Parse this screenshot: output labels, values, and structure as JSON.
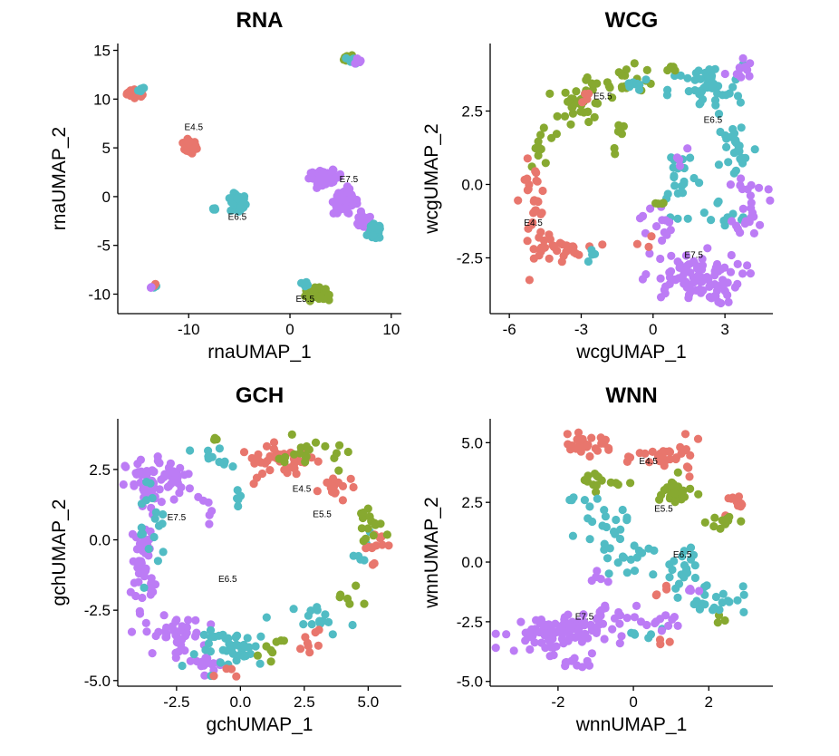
{
  "colors": {
    "E4.5": "#E8766D",
    "E5.5": "#87A930",
    "E6.5": "#51BCC4",
    "E7.5": "#BC7CF5"
  },
  "chart_data": [
    {
      "type": "scatter",
      "title": "RNA",
      "xlabel": "rnaUMAP_1",
      "ylabel": "rnaUMAP_2",
      "xlim": [
        -17,
        11
      ],
      "ylim": [
        -12,
        15.7
      ],
      "xticks": [
        -10,
        0,
        10
      ],
      "yticks": [
        -10,
        -5,
        0,
        5,
        10,
        15
      ],
      "labels": [
        {
          "text": "E4.5",
          "x": -9.5,
          "y": 6.8
        },
        {
          "text": "E5.5",
          "x": 1.5,
          "y": -10.8
        },
        {
          "text": "E6.5",
          "x": -5.2,
          "y": -2.4
        },
        {
          "text": "E7.5",
          "x": 5.8,
          "y": 1.5
        }
      ],
      "clusters": [
        {
          "group": "E4.5",
          "x": -15.2,
          "y": 10.6,
          "rx": 0.8,
          "ry": 0.35,
          "n": 40
        },
        {
          "group": "E6.5",
          "x": -14.7,
          "y": 10.9,
          "rx": 0.3,
          "ry": 0.3,
          "n": 5
        },
        {
          "group": "E4.5",
          "x": -9.9,
          "y": 5.1,
          "rx": 0.6,
          "ry": 0.6,
          "n": 45
        },
        {
          "group": "E6.5",
          "x": -5.1,
          "y": -0.7,
          "rx": 0.7,
          "ry": 0.9,
          "n": 50
        },
        {
          "group": "E6.5",
          "x": -7.4,
          "y": -1.2,
          "rx": 0.3,
          "ry": 0.2,
          "n": 4
        },
        {
          "group": "E6.5",
          "x": -13.4,
          "y": -9.2,
          "rx": 0.3,
          "ry": 0.2,
          "n": 3
        },
        {
          "group": "E4.5",
          "x": -13.3,
          "y": -9.0,
          "rx": 0.2,
          "ry": 0.2,
          "n": 2
        },
        {
          "group": "E7.5",
          "x": -13.7,
          "y": -9.3,
          "rx": 0.2,
          "ry": 0.2,
          "n": 3
        },
        {
          "group": "E5.5",
          "x": 5.8,
          "y": 14.2,
          "rx": 0.4,
          "ry": 0.35,
          "n": 20
        },
        {
          "group": "E6.5",
          "x": 6.3,
          "y": 14.0,
          "rx": 0.4,
          "ry": 0.3,
          "n": 10
        },
        {
          "group": "E7.5",
          "x": 6.6,
          "y": 14.0,
          "rx": 0.3,
          "ry": 0.3,
          "n": 5
        },
        {
          "group": "E5.5",
          "x": 2.5,
          "y": -10.0,
          "rx": 0.9,
          "ry": 0.55,
          "n": 55
        },
        {
          "group": "E6.5",
          "x": 1.6,
          "y": -8.9,
          "rx": 0.3,
          "ry": 0.25,
          "n": 4
        },
        {
          "group": "E7.5",
          "x": 3.5,
          "y": 2.0,
          "rx": 1.5,
          "ry": 0.6,
          "n": 60
        },
        {
          "group": "E7.5",
          "x": 5.5,
          "y": -0.5,
          "rx": 1.1,
          "ry": 1.2,
          "n": 55
        },
        {
          "group": "E7.5",
          "x": 7.2,
          "y": -2.6,
          "rx": 0.8,
          "ry": 0.6,
          "n": 30
        },
        {
          "group": "E6.5",
          "x": 8.4,
          "y": -3.6,
          "rx": 0.55,
          "ry": 0.7,
          "n": 45
        }
      ]
    },
    {
      "type": "scatter",
      "title": "WCG",
      "xlabel": "wcgUMAP_1",
      "ylabel": "wcgUMAP_2",
      "xlim": [
        -6.8,
        5.0
      ],
      "ylim": [
        -4.4,
        4.8
      ],
      "xticks": [
        -6,
        -3,
        0,
        3
      ],
      "yticks": [
        -2.5,
        0.0,
        2.5
      ],
      "labels": [
        {
          "text": "E4.5",
          "x": -5.0,
          "y": -1.4
        },
        {
          "text": "E5.5",
          "x": -2.1,
          "y": 2.9
        },
        {
          "text": "E6.5",
          "x": 2.5,
          "y": 2.1
        },
        {
          "text": "E7.5",
          "x": 1.7,
          "y": -2.5
        }
      ],
      "clusters": [
        {
          "group": "E5.5",
          "x": -2.9,
          "y": 2.7,
          "rx": 0.9,
          "ry": 0.7,
          "n": 35
        },
        {
          "group": "E5.5",
          "x": -1.2,
          "y": 3.6,
          "rx": 1.3,
          "ry": 0.4,
          "n": 20
        },
        {
          "group": "E5.5",
          "x": -4.6,
          "y": 1.4,
          "rx": 0.5,
          "ry": 0.7,
          "n": 10
        },
        {
          "group": "E5.5",
          "x": -1.3,
          "y": 1.6,
          "rx": 0.4,
          "ry": 0.5,
          "n": 6
        },
        {
          "group": "E4.5",
          "x": -5.0,
          "y": -0.6,
          "rx": 0.5,
          "ry": 1.2,
          "n": 30
        },
        {
          "group": "E4.5",
          "x": -4.2,
          "y": -2.2,
          "rx": 1.2,
          "ry": 0.35,
          "n": 30
        },
        {
          "group": "E4.5",
          "x": -2.8,
          "y": 3.0,
          "rx": 0.3,
          "ry": 0.3,
          "n": 4
        },
        {
          "group": "E6.5",
          "x": 2.2,
          "y": 3.2,
          "rx": 1.4,
          "ry": 0.8,
          "n": 45
        },
        {
          "group": "E6.5",
          "x": 3.5,
          "y": 1.2,
          "rx": 0.8,
          "ry": 1.0,
          "n": 25
        },
        {
          "group": "E6.5",
          "x": 1.1,
          "y": 0.4,
          "rx": 0.7,
          "ry": 1.0,
          "n": 20
        },
        {
          "group": "E6.5",
          "x": -0.7,
          "y": 3.4,
          "rx": 0.5,
          "ry": 0.4,
          "n": 8
        },
        {
          "group": "E6.5",
          "x": -2.5,
          "y": -2.4,
          "rx": 0.3,
          "ry": 0.25,
          "n": 4
        },
        {
          "group": "E6.5",
          "x": 2.8,
          "y": -1.2,
          "rx": 1.3,
          "ry": 0.6,
          "n": 12
        },
        {
          "group": "E7.5",
          "x": 3.6,
          "y": 3.9,
          "rx": 0.5,
          "ry": 0.4,
          "n": 12
        },
        {
          "group": "E7.5",
          "x": 4.1,
          "y": -0.6,
          "rx": 0.6,
          "ry": 1.0,
          "n": 25
        },
        {
          "group": "E7.5",
          "x": 1.6,
          "y": -3.2,
          "rx": 1.9,
          "ry": 0.8,
          "n": 90
        },
        {
          "group": "E7.5",
          "x": 0.1,
          "y": -1.3,
          "rx": 0.6,
          "ry": 0.7,
          "n": 14
        },
        {
          "group": "E7.5",
          "x": 1.2,
          "y": 1.0,
          "rx": 0.3,
          "ry": 0.3,
          "n": 4
        },
        {
          "group": "E5.5",
          "x": 0.7,
          "y": 3.9,
          "rx": 0.3,
          "ry": 0.2,
          "n": 4
        },
        {
          "group": "E5.5",
          "x": 0.2,
          "y": -0.6,
          "rx": 0.4,
          "ry": 0.3,
          "n": 4
        },
        {
          "group": "E4.5",
          "x": -0.3,
          "y": -2.1,
          "rx": 0.3,
          "ry": 0.3,
          "n": 3
        }
      ]
    },
    {
      "type": "scatter",
      "title": "GCH",
      "xlabel": "gchUMAP_1",
      "ylabel": "gchUMAP_2",
      "xlim": [
        -4.8,
        6.3
      ],
      "ylim": [
        -5.2,
        4.3
      ],
      "xticks": [
        -2.5,
        0.0,
        2.5,
        5.0
      ],
      "yticks": [
        -5.0,
        -2.5,
        0.0,
        2.5
      ],
      "labels": [
        {
          "text": "E4.5",
          "x": 2.4,
          "y": 1.7
        },
        {
          "text": "E5.5",
          "x": 3.2,
          "y": 0.8
        },
        {
          "text": "E6.5",
          "x": -0.5,
          "y": -1.5
        },
        {
          "text": "E7.5",
          "x": -2.5,
          "y": 0.7
        }
      ],
      "clusters": [
        {
          "group": "E7.5",
          "x": -3.6,
          "y": 1.9,
          "rx": 0.8,
          "ry": 0.9,
          "n": 50
        },
        {
          "group": "E7.5",
          "x": -2.4,
          "y": 2.2,
          "rx": 0.7,
          "ry": 0.6,
          "n": 20
        },
        {
          "group": "E7.5",
          "x": -3.8,
          "y": -0.8,
          "rx": 0.4,
          "ry": 1.5,
          "n": 40
        },
        {
          "group": "E7.5",
          "x": -2.6,
          "y": -3.4,
          "rx": 1.0,
          "ry": 0.6,
          "n": 40
        },
        {
          "group": "E7.5",
          "x": -1.2,
          "y": -4.3,
          "rx": 0.8,
          "ry": 0.3,
          "n": 15
        },
        {
          "group": "E7.5",
          "x": -1.3,
          "y": 0.9,
          "rx": 0.4,
          "ry": 0.5,
          "n": 6
        },
        {
          "group": "E6.5",
          "x": -3.6,
          "y": 0.6,
          "rx": 0.6,
          "ry": 1.6,
          "n": 18
        },
        {
          "group": "E6.5",
          "x": -0.1,
          "y": -3.9,
          "rx": 1.4,
          "ry": 0.6,
          "n": 40
        },
        {
          "group": "E6.5",
          "x": 3.3,
          "y": -2.8,
          "rx": 1.1,
          "ry": 0.5,
          "n": 15
        },
        {
          "group": "E6.5",
          "x": -1.3,
          "y": 2.9,
          "rx": 0.7,
          "ry": 0.5,
          "n": 10
        },
        {
          "group": "E6.5",
          "x": 4.9,
          "y": 0.0,
          "rx": 0.4,
          "ry": 0.6,
          "n": 6
        },
        {
          "group": "E6.5",
          "x": 0.0,
          "y": 1.4,
          "rx": 0.5,
          "ry": 0.3,
          "n": 5
        },
        {
          "group": "E4.5",
          "x": 1.5,
          "y": 2.8,
          "rx": 1.4,
          "ry": 0.5,
          "n": 40
        },
        {
          "group": "E4.5",
          "x": 3.8,
          "y": 1.8,
          "rx": 0.6,
          "ry": 0.5,
          "n": 15
        },
        {
          "group": "E4.5",
          "x": 5.2,
          "y": -0.1,
          "rx": 0.4,
          "ry": 0.6,
          "n": 12
        },
        {
          "group": "E4.5",
          "x": 2.7,
          "y": -3.6,
          "rx": 0.6,
          "ry": 0.5,
          "n": 8
        },
        {
          "group": "E4.5",
          "x": -0.6,
          "y": -4.7,
          "rx": 0.4,
          "ry": 0.2,
          "n": 4
        },
        {
          "group": "E5.5",
          "x": 2.8,
          "y": 3.0,
          "rx": 1.3,
          "ry": 0.6,
          "n": 20
        },
        {
          "group": "E5.5",
          "x": 5.0,
          "y": 0.5,
          "rx": 0.5,
          "ry": 0.8,
          "n": 15
        },
        {
          "group": "E5.5",
          "x": 4.2,
          "y": -2.2,
          "rx": 0.5,
          "ry": 0.4,
          "n": 6
        },
        {
          "group": "E5.5",
          "x": 1.2,
          "y": -3.8,
          "rx": 0.8,
          "ry": 0.4,
          "n": 8
        },
        {
          "group": "E5.5",
          "x": -0.9,
          "y": 3.5,
          "rx": 0.3,
          "ry": 0.2,
          "n": 3
        }
      ]
    },
    {
      "type": "scatter",
      "title": "WNN",
      "xlabel": "wnnUMAP_1",
      "ylabel": "wnnUMAP_2",
      "xlim": [
        -3.8,
        3.7
      ],
      "ylim": [
        -5.2,
        6.0
      ],
      "xticks": [
        -2,
        0,
        2
      ],
      "yticks": [
        -5.0,
        -2.5,
        0.0,
        2.5,
        5.0
      ],
      "labels": [
        {
          "text": "E4.5",
          "x": 0.4,
          "y": 4.1
        },
        {
          "text": "E5.5",
          "x": 0.8,
          "y": 2.1
        },
        {
          "text": "E6.5",
          "x": 1.3,
          "y": 0.2
        },
        {
          "text": "E7.5",
          "x": -1.3,
          "y": -2.4
        }
      ],
      "clusters": [
        {
          "group": "E4.5",
          "x": -1.3,
          "y": 4.9,
          "rx": 0.7,
          "ry": 0.35,
          "n": 30
        },
        {
          "group": "E4.5",
          "x": 1.0,
          "y": 4.4,
          "rx": 0.8,
          "ry": 0.6,
          "n": 30
        },
        {
          "group": "E4.5",
          "x": 2.7,
          "y": 2.4,
          "rx": 0.4,
          "ry": 0.6,
          "n": 10
        },
        {
          "group": "E4.5",
          "x": 0.6,
          "y": -1.3,
          "rx": 0.3,
          "ry": 0.3,
          "n": 4
        },
        {
          "group": "E4.5",
          "x": 0.8,
          "y": -3.4,
          "rx": 0.3,
          "ry": 0.2,
          "n": 3
        },
        {
          "group": "E5.5",
          "x": -0.9,
          "y": 3.4,
          "rx": 0.5,
          "ry": 0.4,
          "n": 15
        },
        {
          "group": "E5.5",
          "x": 1.1,
          "y": 2.9,
          "rx": 0.5,
          "ry": 0.6,
          "n": 25
        },
        {
          "group": "E5.5",
          "x": 2.4,
          "y": 1.7,
          "rx": 0.4,
          "ry": 0.4,
          "n": 10
        },
        {
          "group": "E5.5",
          "x": 2.4,
          "y": -2.4,
          "rx": 0.3,
          "ry": 0.2,
          "n": 3
        },
        {
          "group": "E6.5",
          "x": -0.8,
          "y": 1.5,
          "rx": 0.6,
          "ry": 0.8,
          "n": 20
        },
        {
          "group": "E6.5",
          "x": -0.3,
          "y": 0.2,
          "rx": 0.7,
          "ry": 0.6,
          "n": 15
        },
        {
          "group": "E6.5",
          "x": 1.4,
          "y": 0.0,
          "rx": 0.6,
          "ry": 0.8,
          "n": 20
        },
        {
          "group": "E6.5",
          "x": 2.0,
          "y": -1.5,
          "rx": 0.9,
          "ry": 0.6,
          "n": 25
        },
        {
          "group": "E6.5",
          "x": 0.3,
          "y": -3.0,
          "rx": 0.4,
          "ry": 0.3,
          "n": 6
        },
        {
          "group": "E6.5",
          "x": -1.6,
          "y": 2.7,
          "rx": 0.2,
          "ry": 0.2,
          "n": 3
        },
        {
          "group": "E7.5",
          "x": -2.2,
          "y": -3.0,
          "rx": 1.2,
          "ry": 0.7,
          "n": 80
        },
        {
          "group": "E7.5",
          "x": -0.8,
          "y": -2.5,
          "rx": 0.8,
          "ry": 0.6,
          "n": 25
        },
        {
          "group": "E7.5",
          "x": 0.7,
          "y": -2.6,
          "rx": 0.5,
          "ry": 0.4,
          "n": 10
        },
        {
          "group": "E7.5",
          "x": -1.5,
          "y": -4.2,
          "rx": 0.5,
          "ry": 0.3,
          "n": 10
        },
        {
          "group": "E7.5",
          "x": -1.0,
          "y": -0.6,
          "rx": 0.4,
          "ry": 0.3,
          "n": 5
        },
        {
          "group": "E7.5",
          "x": 1.4,
          "y": -1.2,
          "rx": 0.3,
          "ry": 0.3,
          "n": 4
        }
      ]
    }
  ]
}
